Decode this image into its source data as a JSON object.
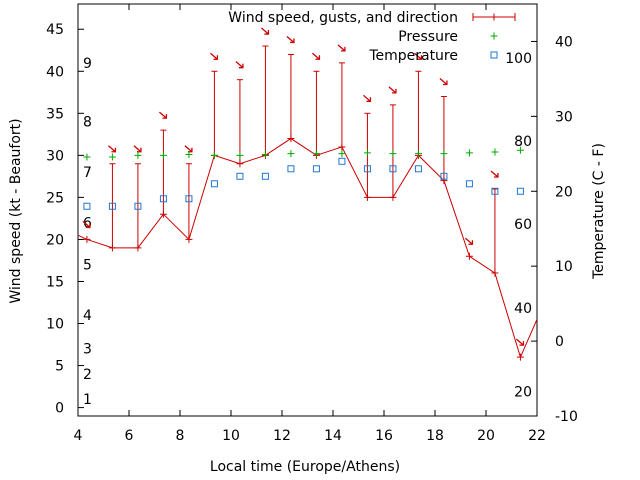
{
  "chart_data": {
    "type": "line",
    "xlabel": "Local time (Europe/Athens)",
    "ylabel_left": "Wind speed (kt - Beaufort)",
    "ylabel_right": "Temperature (C - F)",
    "x_range": [
      4,
      22
    ],
    "y_left_range": [
      -1,
      48
    ],
    "y_right_range": [
      -10,
      45
    ],
    "x_ticks": [
      4,
      6,
      8,
      10,
      12,
      14,
      16,
      18,
      20,
      22
    ],
    "y_left_ticks": [
      0,
      5,
      10,
      15,
      20,
      25,
      30,
      35,
      40,
      45
    ],
    "y_right_ticks": [
      -10,
      0,
      10,
      20,
      30,
      40
    ],
    "beaufort_labels": [
      {
        "text": "1",
        "y": 1
      },
      {
        "text": "2",
        "y": 4
      },
      {
        "text": "3",
        "y": 7
      },
      {
        "text": "4",
        "y": 11
      },
      {
        "text": "5",
        "y": 17
      },
      {
        "text": "6",
        "y": 22
      },
      {
        "text": "7",
        "y": 28
      },
      {
        "text": "8",
        "y": 34
      },
      {
        "text": "9",
        "y": 41
      }
    ],
    "fahrenheit_labels": [
      {
        "text": "20",
        "y": -6.7
      },
      {
        "text": "40",
        "y": 4.4
      },
      {
        "text": "60",
        "y": 15.6
      },
      {
        "text": "80",
        "y": 26.7
      },
      {
        "text": "100",
        "y": 37.8
      }
    ],
    "legend": {
      "position": "top-right",
      "entries": [
        {
          "label": "Wind speed, gusts, and direction",
          "color": "#cc0000",
          "marker": "line-errorbar"
        },
        {
          "label": "Pressure",
          "color": "#00aa00",
          "marker": "plus"
        },
        {
          "label": "Temperature",
          "color": "#1f77d4",
          "marker": "square"
        }
      ]
    },
    "series": [
      {
        "name": "Wind speed, gusts, and direction",
        "axis": "left",
        "x": [
          4,
          4.35,
          5.35,
          6.35,
          7.35,
          8.35,
          9.35,
          10.35,
          11.35,
          12.35,
          13.35,
          14.35,
          15.35,
          16.35,
          17.35,
          18.35,
          19.35,
          20.35,
          21.35,
          22
        ],
        "y": [
          20.5,
          20,
          19,
          19,
          23,
          20,
          30,
          29,
          30,
          32,
          30,
          31,
          25,
          25,
          30,
          27,
          18,
          16,
          6,
          10.5
        ],
        "gust": [
          null,
          20,
          29,
          29,
          33,
          29,
          40,
          39,
          43,
          42,
          40,
          41,
          35,
          36,
          40,
          37,
          null,
          26,
          null,
          null
        ],
        "direction_deg": [
          null,
          320,
          320,
          320,
          320,
          320,
          320,
          320,
          320,
          320,
          320,
          320,
          320,
          320,
          320,
          320,
          320,
          320,
          320,
          null
        ]
      },
      {
        "name": "Pressure",
        "axis": "left",
        "x": [
          4.35,
          5.35,
          6.35,
          7.35,
          8.35,
          9.35,
          10.35,
          11.35,
          12.35,
          13.35,
          14.35,
          15.35,
          16.35,
          17.35,
          18.35,
          19.35,
          20.35,
          21.35
        ],
        "y": [
          29.8,
          29.8,
          30.0,
          30.0,
          30.1,
          30.0,
          30.0,
          30.1,
          30.2,
          30.2,
          30.2,
          30.3,
          30.2,
          30.2,
          30.2,
          30.3,
          30.4,
          30.6
        ]
      },
      {
        "name": "Temperature",
        "axis": "right",
        "x": [
          4.35,
          5.35,
          6.35,
          7.35,
          8.35,
          9.35,
          10.35,
          11.35,
          12.35,
          13.35,
          14.35,
          15.35,
          16.35,
          17.35,
          18.35,
          19.35,
          20.35,
          21.35
        ],
        "y": [
          18,
          18,
          18,
          19,
          19,
          21,
          22,
          22,
          23,
          23,
          24,
          23,
          23,
          23,
          22,
          21,
          20,
          20
        ]
      }
    ],
    "colors": {
      "wind": "#cc0000",
      "pressure": "#00aa00",
      "temperature": "#1f77d4",
      "axis": "#000000"
    }
  }
}
